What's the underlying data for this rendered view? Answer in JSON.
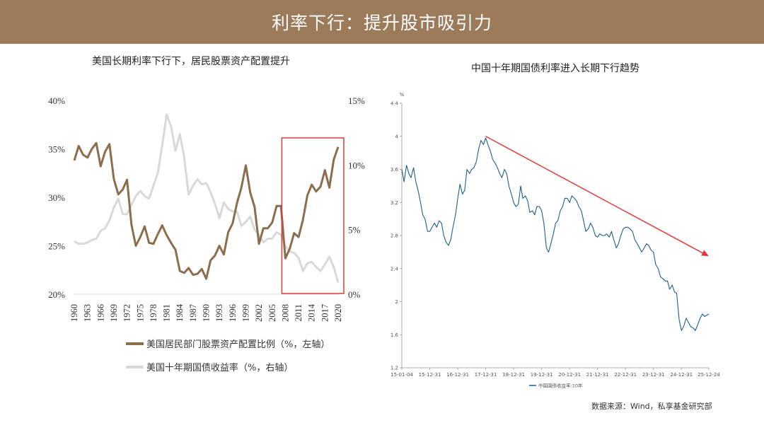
{
  "header": {
    "title": "利率下行：提升股市吸引力"
  },
  "chart_data": [
    {
      "type": "line",
      "title": "美国长期利率下行下，居民股票资产配置提升",
      "x": [
        1960,
        1961,
        1962,
        1963,
        1964,
        1965,
        1966,
        1967,
        1968,
        1969,
        1970,
        1971,
        1972,
        1973,
        1974,
        1975,
        1976,
        1977,
        1978,
        1979,
        1980,
        1981,
        1982,
        1983,
        1984,
        1985,
        1986,
        1987,
        1988,
        1989,
        1990,
        1991,
        1992,
        1993,
        1994,
        1995,
        1996,
        1997,
        1998,
        1999,
        2000,
        2001,
        2002,
        2003,
        2004,
        2005,
        2006,
        2007,
        2008,
        2009,
        2010,
        2011,
        2012,
        2013,
        2014,
        2015,
        2016,
        2017,
        2018,
        2019,
        2020
      ],
      "x_tick_labels": [
        "1960",
        "1963",
        "1966",
        "1969",
        "1972",
        "1975",
        "1978",
        "1981",
        "1984",
        "1987",
        "1990",
        "1993",
        "1996",
        "1999",
        "2002",
        "2005",
        "2008",
        "2011",
        "2014",
        "2017",
        "2020"
      ],
      "y_left": {
        "ylim": [
          20,
          40
        ],
        "ticks": [
          "20%",
          "25%",
          "30%",
          "35%",
          "40%"
        ],
        "tick_values": [
          20,
          25,
          30,
          35,
          40
        ]
      },
      "y_right": {
        "ylim": [
          0,
          15
        ],
        "ticks": [
          "0%",
          "5%",
          "10%",
          "15%"
        ],
        "tick_values": [
          0,
          5,
          10,
          15
        ]
      },
      "series": [
        {
          "name": "美国居民部门股票资产配置比例（%，左轴）",
          "axis": "left",
          "color": "#8c6d4c",
          "values": [
            33.8,
            35.3,
            34.4,
            34.1,
            35.0,
            35.6,
            33.2,
            34.7,
            35.5,
            31.9,
            30.3,
            30.8,
            31.8,
            27.2,
            25.0,
            25.9,
            27.0,
            25.3,
            25.2,
            26.2,
            27.1,
            26.1,
            25.3,
            24.6,
            22.4,
            22.2,
            22.7,
            22.0,
            22.1,
            22.6,
            21.6,
            23.5,
            24.0,
            25.0,
            24.1,
            26.4,
            27.3,
            29.4,
            31.0,
            33.3,
            30.5,
            29.0,
            25.2,
            26.8,
            26.8,
            27.4,
            29.1,
            29.1,
            23.7,
            24.7,
            26.3,
            25.9,
            27.7,
            30.2,
            31.3,
            30.6,
            31.1,
            32.8,
            31.0,
            33.9,
            35.2
          ]
        },
        {
          "name": "美国十年期国债收益率（%，右轴）",
          "axis": "right",
          "color": "#d9d9d9",
          "values": [
            4.1,
            3.9,
            3.9,
            4.0,
            4.2,
            4.3,
            4.9,
            5.1,
            5.7,
            6.7,
            7.4,
            6.2,
            6.2,
            6.9,
            7.6,
            8.0,
            7.6,
            7.4,
            8.4,
            9.4,
            11.5,
            13.9,
            13.0,
            11.1,
            12.4,
            10.6,
            7.7,
            8.4,
            8.9,
            8.5,
            8.6,
            7.9,
            7.0,
            5.9,
            7.1,
            6.6,
            6.4,
            6.4,
            5.3,
            5.6,
            6.0,
            5.0,
            4.6,
            4.0,
            4.3,
            4.3,
            4.8,
            4.6,
            3.7,
            3.3,
            3.2,
            2.8,
            1.8,
            2.4,
            2.5,
            2.1,
            1.8,
            2.3,
            2.9,
            2.1,
            0.9
          ]
        }
      ],
      "highlight": {
        "x_start": 2008,
        "x_end": 2020,
        "color": "#e03b3b"
      }
    },
    {
      "type": "line",
      "title": "中国十年期国债利率进入长期下行趋势",
      "unit_label": "%",
      "ylim": [
        1.2,
        4.4
      ],
      "y_ticks": [
        "1.2",
        "1.6",
        "2",
        "2.4",
        "2.8",
        "3.2",
        "3.6",
        "4",
        "4.4"
      ],
      "y_tick_values": [
        1.2,
        1.6,
        2.0,
        2.4,
        2.8,
        3.2,
        3.6,
        4.0,
        4.4
      ],
      "x_range": [
        2015.0,
        2025.98
      ],
      "x_ticks": [
        "15-01-04",
        "15-12-31",
        "16-12-31",
        "17-12-31",
        "18-12-31",
        "19-12-31",
        "20-12-31",
        "21-12-31",
        "22-12-31",
        "23-12-31",
        "24-12-31",
        "25-12-24"
      ],
      "x_tick_values": [
        2015.0,
        2016.0,
        2017.0,
        2018.0,
        2019.0,
        2020.0,
        2021.0,
        2022.0,
        2023.0,
        2024.0,
        2025.0,
        2025.98
      ],
      "series": [
        {
          "name": "中国国债收益率:10年",
          "color": "#1f5f8b",
          "x": [
            2015.0,
            2015.08,
            2015.17,
            2015.25,
            2015.33,
            2015.42,
            2015.5,
            2015.58,
            2015.67,
            2015.75,
            2015.83,
            2015.92,
            2016.0,
            2016.08,
            2016.17,
            2016.25,
            2016.33,
            2016.42,
            2016.5,
            2016.58,
            2016.67,
            2016.75,
            2016.83,
            2016.92,
            2017.0,
            2017.08,
            2017.17,
            2017.25,
            2017.33,
            2017.42,
            2017.5,
            2017.58,
            2017.67,
            2017.75,
            2017.83,
            2017.92,
            2018.0,
            2018.08,
            2018.17,
            2018.25,
            2018.33,
            2018.42,
            2018.5,
            2018.58,
            2018.67,
            2018.75,
            2018.83,
            2018.92,
            2019.0,
            2019.08,
            2019.17,
            2019.25,
            2019.33,
            2019.42,
            2019.5,
            2019.58,
            2019.67,
            2019.75,
            2019.83,
            2019.92,
            2020.0,
            2020.08,
            2020.17,
            2020.25,
            2020.33,
            2020.42,
            2020.5,
            2020.58,
            2020.67,
            2020.75,
            2020.83,
            2020.92,
            2021.0,
            2021.08,
            2021.17,
            2021.25,
            2021.33,
            2021.42,
            2021.5,
            2021.58,
            2021.67,
            2021.75,
            2021.83,
            2021.92,
            2022.0,
            2022.08,
            2022.17,
            2022.25,
            2022.33,
            2022.42,
            2022.5,
            2022.58,
            2022.67,
            2022.75,
            2022.83,
            2022.92,
            2023.0,
            2023.08,
            2023.17,
            2023.25,
            2023.33,
            2023.42,
            2023.5,
            2023.58,
            2023.67,
            2023.75,
            2023.83,
            2023.92,
            2024.0,
            2024.08,
            2024.17,
            2024.25,
            2024.33,
            2024.42,
            2024.5,
            2024.58,
            2024.67,
            2024.75,
            2024.83,
            2024.92,
            2025.0,
            2025.08,
            2025.17,
            2025.25,
            2025.33,
            2025.42,
            2025.5,
            2025.58,
            2025.67,
            2025.75,
            2025.83,
            2025.98
          ],
          "values": [
            3.6,
            3.45,
            3.65,
            3.55,
            3.5,
            3.62,
            3.45,
            3.35,
            3.2,
            3.05,
            3.0,
            2.85,
            2.85,
            2.9,
            2.95,
            2.9,
            2.98,
            2.95,
            2.8,
            2.72,
            2.68,
            2.75,
            2.9,
            3.05,
            3.25,
            3.42,
            3.3,
            3.35,
            3.6,
            3.55,
            3.6,
            3.62,
            3.7,
            3.85,
            3.95,
            3.9,
            3.98,
            3.9,
            3.82,
            3.72,
            3.68,
            3.62,
            3.55,
            3.5,
            3.6,
            3.55,
            3.4,
            3.3,
            3.2,
            3.15,
            3.18,
            3.4,
            3.25,
            3.28,
            3.22,
            3.08,
            3.1,
            3.05,
            3.15,
            3.15,
            3.1,
            2.95,
            2.65,
            2.6,
            2.7,
            2.82,
            2.95,
            2.98,
            3.1,
            3.15,
            3.25,
            3.25,
            3.2,
            3.28,
            3.25,
            3.22,
            3.15,
            3.1,
            2.98,
            2.85,
            2.88,
            2.95,
            2.9,
            2.8,
            2.78,
            2.82,
            2.8,
            2.8,
            2.82,
            2.78,
            2.85,
            2.75,
            2.65,
            2.7,
            2.8,
            2.88,
            2.9,
            2.9,
            2.88,
            2.85,
            2.75,
            2.7,
            2.65,
            2.6,
            2.65,
            2.7,
            2.68,
            2.62,
            2.6,
            2.45,
            2.4,
            2.3,
            2.28,
            2.25,
            2.25,
            2.15,
            2.2,
            2.12,
            2.1,
            1.78,
            1.65,
            1.7,
            1.8,
            1.75,
            1.7,
            1.68,
            1.65,
            1.72,
            1.8,
            1.85,
            1.82,
            1.85
          ]
        }
      ],
      "trend_arrow": {
        "x_start": 2018.0,
        "y_start": 4.0,
        "x_end": 2025.98,
        "y_end": 2.55,
        "color": "#e03b3b"
      },
      "legend": "bottom-left"
    }
  ],
  "source_note": "数据来源：Wind，私享基金研究部"
}
